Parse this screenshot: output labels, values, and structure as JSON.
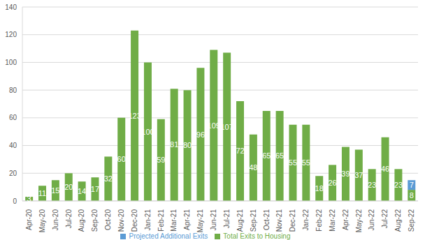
{
  "chart_data": {
    "type": "bar",
    "stacked": true,
    "data_labels": true,
    "grid": true,
    "legend": "bottom",
    "categories": [
      "Apr-20",
      "May-20",
      "Jun-20",
      "Jul-20",
      "Aug-20",
      "Sep-20",
      "Oct-20",
      "Nov-20",
      "Dec-20",
      "Jan-21",
      "Feb-21",
      "Mar-21",
      "Apr-21",
      "May-21",
      "Jun-21",
      "Jul-21",
      "Aug-21",
      "Sep-21",
      "Oct-21",
      "Nov-21",
      "Dec-21",
      "Jan-22",
      "Feb-22",
      "Mar-22",
      "Apr-22",
      "May-22",
      "Jun-22",
      "Jul-22",
      "Aug-22",
      "Sep-22"
    ],
    "series": [
      {
        "name": "Total Exits to Housing",
        "color": "#70ad47",
        "values": [
          3,
          11,
          15,
          20,
          14,
          17,
          32,
          60,
          123,
          100,
          59,
          81,
          80,
          96,
          109,
          107,
          72,
          48,
          65,
          65,
          55,
          55,
          18,
          26,
          39,
          37,
          23,
          46,
          23,
          8
        ]
      },
      {
        "name": "Projected Additional Exits",
        "color": "#5b9bd5",
        "values": [
          null,
          null,
          null,
          null,
          null,
          null,
          null,
          null,
          null,
          null,
          null,
          null,
          null,
          null,
          null,
          null,
          null,
          null,
          null,
          null,
          null,
          null,
          null,
          null,
          null,
          null,
          null,
          null,
          null,
          7
        ]
      }
    ],
    "ylim": [
      0,
      140
    ],
    "yticks": [
      0,
      20,
      40,
      60,
      80,
      100,
      120,
      140
    ]
  }
}
